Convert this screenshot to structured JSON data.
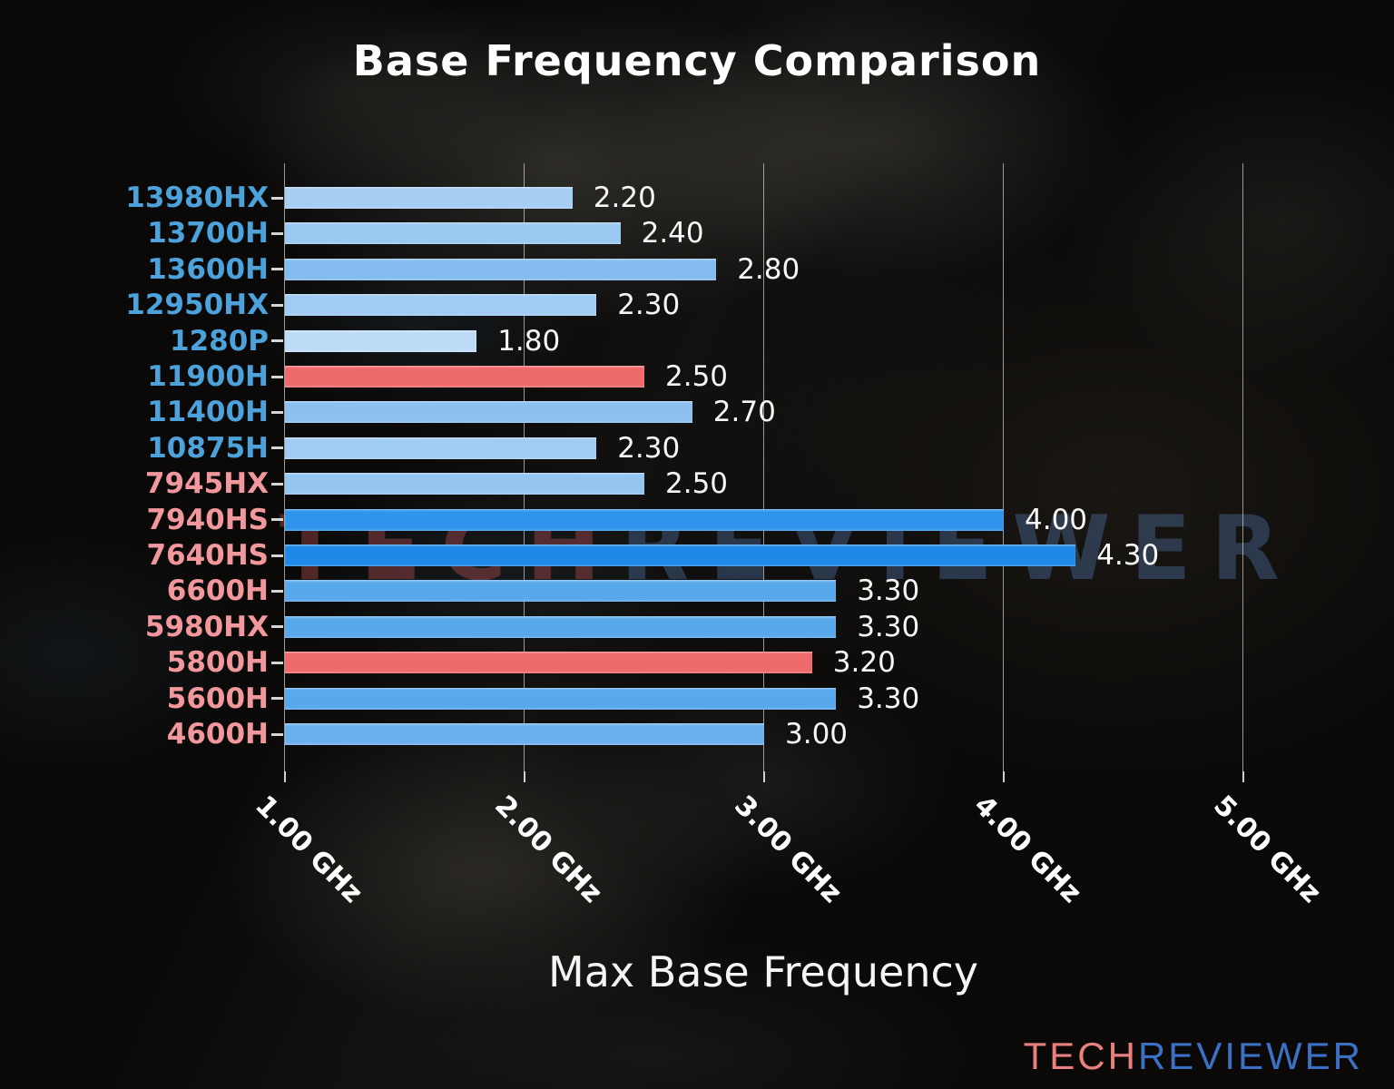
{
  "title": "Base Frequency Comparison",
  "xlabel": "Max Base Frequency",
  "watermark": {
    "tech": "TECH",
    "reviewer": "REVIEWER"
  },
  "logo": {
    "tech": "TECH",
    "reviewer": "REVIEWER"
  },
  "colors": {
    "intel_label": "#4da2dc",
    "amd_label": "#f2989c",
    "highlight_red": "#ef6a6b",
    "value_text": "#f7f7f7",
    "gridline": "#c8c8c8",
    "logo_tech": "#e9807e",
    "logo_reviewer": "#3b70c4"
  },
  "chart_data": {
    "type": "bar",
    "orientation": "horizontal",
    "title": "Base Frequency Comparison",
    "xlabel": "Max Base Frequency",
    "unit": "GHz",
    "xlim": [
      1.0,
      5.0
    ],
    "grid": true,
    "value_decimals": 2,
    "x_ticks": [
      {
        "value": 1.0,
        "label": "1.00 GHz"
      },
      {
        "value": 2.0,
        "label": "2.00 GHz"
      },
      {
        "value": 3.0,
        "label": "3.00 GHz"
      },
      {
        "value": 4.0,
        "label": "4.00 GHz"
      },
      {
        "value": 5.0,
        "label": "5.00 GHz"
      }
    ],
    "bars": [
      {
        "category": "13980HX",
        "value": 2.2,
        "brand": "intel",
        "bar_color": "#a6cef3"
      },
      {
        "category": "13700H",
        "value": 2.4,
        "brand": "intel",
        "bar_color": "#9ac8f1"
      },
      {
        "category": "13600H",
        "value": 2.8,
        "brand": "intel",
        "bar_color": "#84bcef"
      },
      {
        "category": "12950HX",
        "value": 2.3,
        "brand": "intel",
        "bar_color": "#a0cbf2"
      },
      {
        "category": "1280P",
        "value": 1.8,
        "brand": "intel",
        "bar_color": "#bedcf7"
      },
      {
        "category": "11900H",
        "value": 2.5,
        "brand": "intel",
        "bar_color": "#ef6a6b"
      },
      {
        "category": "11400H",
        "value": 2.7,
        "brand": "intel",
        "bar_color": "#8bc0ef"
      },
      {
        "category": "10875H",
        "value": 2.3,
        "brand": "intel",
        "bar_color": "#a0cbf2"
      },
      {
        "category": "7945HX",
        "value": 2.5,
        "brand": "amd",
        "bar_color": "#95c5f1"
      },
      {
        "category": "7940HS",
        "value": 4.0,
        "brand": "amd",
        "bar_color": "#2e94ec"
      },
      {
        "category": "7640HS",
        "value": 4.3,
        "brand": "amd",
        "bar_color": "#1e89e9"
      },
      {
        "category": "6600H",
        "value": 3.3,
        "brand": "amd",
        "bar_color": "#58a8ec"
      },
      {
        "category": "5980HX",
        "value": 3.3,
        "brand": "amd",
        "bar_color": "#58a8ec"
      },
      {
        "category": "5800H",
        "value": 3.2,
        "brand": "amd",
        "bar_color": "#ef6a6b"
      },
      {
        "category": "5600H",
        "value": 3.3,
        "brand": "amd",
        "bar_color": "#58a8ec"
      },
      {
        "category": "4600H",
        "value": 3.0,
        "brand": "amd",
        "bar_color": "#6bb1ee"
      }
    ]
  }
}
